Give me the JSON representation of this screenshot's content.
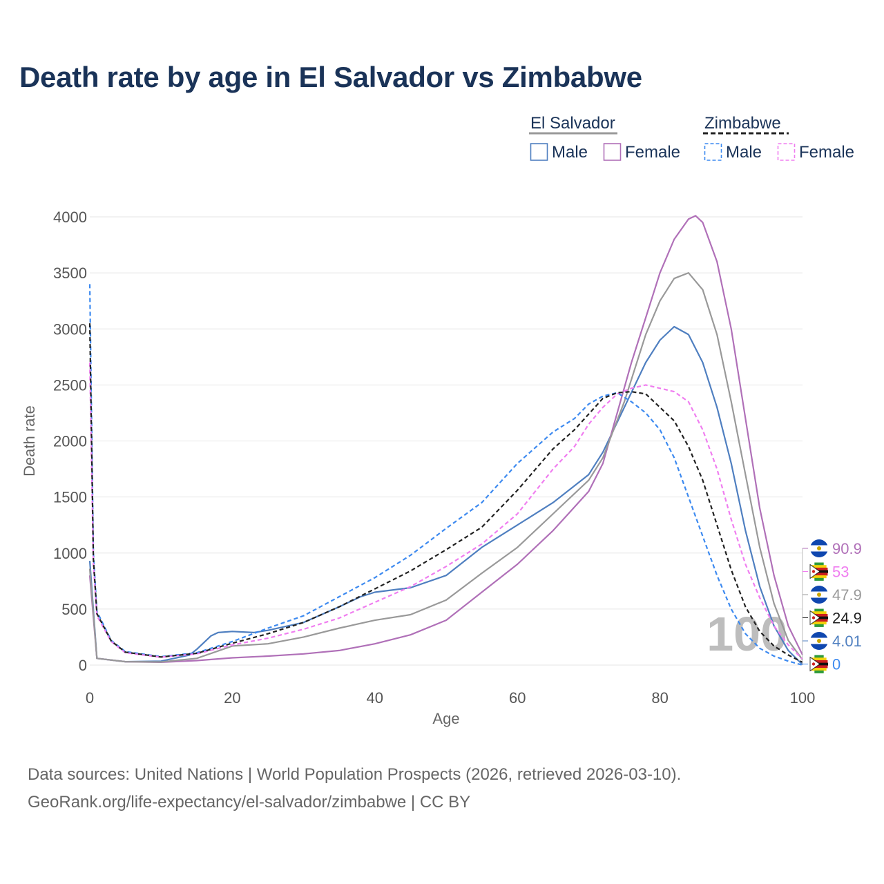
{
  "title": "Death rate by age in El Salvador vs Zimbabwe",
  "source_line_1": "Data sources: United Nations | World Population Prospects (2026, retrieved 2026-03-10).",
  "source_line_2": "GeoRank.org/life-expectancy/el-salvador/zimbabwe | CC BY",
  "watermark": "100",
  "legend": {
    "groups": [
      {
        "label": "El Salvador",
        "color": "#999999",
        "dash": "solid",
        "items": [
          {
            "label": "Male",
            "color": "#4f7fc0",
            "dash": "solid"
          },
          {
            "label": "Female",
            "color": "#b070b8",
            "dash": "solid"
          }
        ]
      },
      {
        "label": "Zimbabwe",
        "color": "#222222",
        "dash": "dashed",
        "items": [
          {
            "label": "Male",
            "color": "#3d8af0",
            "dash": "dashed"
          },
          {
            "label": "Female",
            "color": "#f07ef0",
            "dash": "dashed"
          }
        ]
      }
    ]
  },
  "end_labels": [
    {
      "value": "90.9",
      "color": "#b070b8",
      "flag": "el-salvador"
    },
    {
      "value": "53",
      "color": "#f07ef0",
      "flag": "zimbabwe"
    },
    {
      "value": "47.9",
      "color": "#999999",
      "flag": "el-salvador"
    },
    {
      "value": "24.9",
      "color": "#222222",
      "flag": "zimbabwe"
    },
    {
      "value": "4.01",
      "color": "#4f7fc0",
      "flag": "el-salvador"
    },
    {
      "value": "0",
      "color": "#3d8af0",
      "flag": "zimbabwe"
    }
  ],
  "chart_data": {
    "type": "line",
    "title": "Death rate by age in El Salvador vs Zimbabwe",
    "xlabel": "Age",
    "ylabel": "Death rate",
    "xlim": [
      0,
      100
    ],
    "ylim": [
      0,
      4000
    ],
    "xticks": [
      0,
      20,
      40,
      60,
      80,
      100
    ],
    "yticks": [
      0,
      500,
      1000,
      1500,
      2000,
      2500,
      3000,
      3500,
      4000
    ],
    "grid": true,
    "series": [
      {
        "name": "El Salvador Male",
        "color": "#4f7fc0",
        "dash": "solid",
        "points": [
          [
            0,
            930
          ],
          [
            1,
            60
          ],
          [
            5,
            30
          ],
          [
            10,
            35
          ],
          [
            14,
            90
          ],
          [
            15,
            140
          ],
          [
            17,
            260
          ],
          [
            18,
            290
          ],
          [
            20,
            300
          ],
          [
            23,
            290
          ],
          [
            25,
            310
          ],
          [
            30,
            380
          ],
          [
            35,
            520
          ],
          [
            38,
            610
          ],
          [
            40,
            650
          ],
          [
            45,
            690
          ],
          [
            50,
            800
          ],
          [
            55,
            1050
          ],
          [
            60,
            1250
          ],
          [
            65,
            1450
          ],
          [
            70,
            1700
          ],
          [
            72,
            1900
          ],
          [
            75,
            2300
          ],
          [
            78,
            2700
          ],
          [
            80,
            2900
          ],
          [
            82,
            3020
          ],
          [
            84,
            2950
          ],
          [
            86,
            2700
          ],
          [
            88,
            2300
          ],
          [
            90,
            1800
          ],
          [
            92,
            1200
          ],
          [
            94,
            700
          ],
          [
            96,
            350
          ],
          [
            98,
            130
          ],
          [
            100,
            4
          ]
        ]
      },
      {
        "name": "El Salvador Female",
        "color": "#b070b8",
        "dash": "solid",
        "points": [
          [
            0,
            800
          ],
          [
            1,
            60
          ],
          [
            5,
            30
          ],
          [
            10,
            25
          ],
          [
            15,
            40
          ],
          [
            20,
            65
          ],
          [
            25,
            80
          ],
          [
            30,
            100
          ],
          [
            35,
            130
          ],
          [
            40,
            190
          ],
          [
            45,
            270
          ],
          [
            50,
            400
          ],
          [
            55,
            650
          ],
          [
            60,
            900
          ],
          [
            65,
            1200
          ],
          [
            70,
            1550
          ],
          [
            72,
            1800
          ],
          [
            74,
            2250
          ],
          [
            76,
            2700
          ],
          [
            78,
            3100
          ],
          [
            80,
            3500
          ],
          [
            82,
            3800
          ],
          [
            84,
            3980
          ],
          [
            85,
            4010
          ],
          [
            86,
            3950
          ],
          [
            88,
            3600
          ],
          [
            90,
            3000
          ],
          [
            92,
            2200
          ],
          [
            94,
            1400
          ],
          [
            96,
            800
          ],
          [
            98,
            350
          ],
          [
            100,
            91
          ]
        ]
      },
      {
        "name": "El Salvador Total",
        "color": "#999999",
        "dash": "solid",
        "points": [
          [
            0,
            860
          ],
          [
            1,
            60
          ],
          [
            5,
            30
          ],
          [
            10,
            28
          ],
          [
            15,
            60
          ],
          [
            20,
            170
          ],
          [
            25,
            190
          ],
          [
            30,
            250
          ],
          [
            35,
            330
          ],
          [
            40,
            400
          ],
          [
            45,
            450
          ],
          [
            50,
            580
          ],
          [
            55,
            820
          ],
          [
            60,
            1050
          ],
          [
            65,
            1350
          ],
          [
            70,
            1650
          ],
          [
            72,
            1850
          ],
          [
            75,
            2350
          ],
          [
            78,
            2950
          ],
          [
            80,
            3250
          ],
          [
            82,
            3450
          ],
          [
            84,
            3500
          ],
          [
            86,
            3350
          ],
          [
            88,
            2950
          ],
          [
            90,
            2350
          ],
          [
            92,
            1700
          ],
          [
            94,
            1050
          ],
          [
            96,
            550
          ],
          [
            98,
            220
          ],
          [
            100,
            48
          ]
        ]
      },
      {
        "name": "Zimbabwe Male",
        "color": "#3d8af0",
        "dash": "dashed",
        "points": [
          [
            0,
            3400
          ],
          [
            0.5,
            1000
          ],
          [
            1,
            480
          ],
          [
            3,
            220
          ],
          [
            5,
            120
          ],
          [
            10,
            75
          ],
          [
            15,
            110
          ],
          [
            20,
            210
          ],
          [
            25,
            330
          ],
          [
            30,
            440
          ],
          [
            35,
            610
          ],
          [
            40,
            780
          ],
          [
            45,
            980
          ],
          [
            50,
            1220
          ],
          [
            55,
            1450
          ],
          [
            60,
            1800
          ],
          [
            65,
            2080
          ],
          [
            68,
            2200
          ],
          [
            70,
            2330
          ],
          [
            72,
            2400
          ],
          [
            74,
            2430
          ],
          [
            76,
            2350
          ],
          [
            78,
            2250
          ],
          [
            80,
            2100
          ],
          [
            82,
            1850
          ],
          [
            84,
            1500
          ],
          [
            86,
            1150
          ],
          [
            88,
            800
          ],
          [
            90,
            500
          ],
          [
            92,
            280
          ],
          [
            94,
            150
          ],
          [
            96,
            80
          ],
          [
            98,
            35
          ],
          [
            100,
            0
          ]
        ]
      },
      {
        "name": "Zimbabwe Female",
        "color": "#f07ef0",
        "dash": "dashed",
        "points": [
          [
            0,
            2700
          ],
          [
            0.5,
            900
          ],
          [
            1,
            440
          ],
          [
            3,
            210
          ],
          [
            5,
            110
          ],
          [
            10,
            70
          ],
          [
            15,
            100
          ],
          [
            20,
            180
          ],
          [
            25,
            240
          ],
          [
            30,
            320
          ],
          [
            35,
            420
          ],
          [
            40,
            560
          ],
          [
            45,
            700
          ],
          [
            50,
            880
          ],
          [
            55,
            1080
          ],
          [
            60,
            1350
          ],
          [
            65,
            1750
          ],
          [
            68,
            1950
          ],
          [
            70,
            2150
          ],
          [
            72,
            2300
          ],
          [
            74,
            2420
          ],
          [
            76,
            2470
          ],
          [
            78,
            2500
          ],
          [
            80,
            2470
          ],
          [
            82,
            2440
          ],
          [
            84,
            2350
          ],
          [
            86,
            2100
          ],
          [
            88,
            1750
          ],
          [
            90,
            1300
          ],
          [
            92,
            900
          ],
          [
            94,
            600
          ],
          [
            96,
            350
          ],
          [
            98,
            180
          ],
          [
            100,
            53
          ]
        ]
      },
      {
        "name": "Zimbabwe Total",
        "color": "#222222",
        "dash": "dashed",
        "points": [
          [
            0,
            3050
          ],
          [
            0.5,
            950
          ],
          [
            1,
            460
          ],
          [
            3,
            215
          ],
          [
            5,
            115
          ],
          [
            10,
            72
          ],
          [
            15,
            105
          ],
          [
            20,
            195
          ],
          [
            25,
            280
          ],
          [
            30,
            380
          ],
          [
            35,
            520
          ],
          [
            40,
            680
          ],
          [
            45,
            840
          ],
          [
            50,
            1030
          ],
          [
            55,
            1230
          ],
          [
            60,
            1560
          ],
          [
            65,
            1930
          ],
          [
            68,
            2100
          ],
          [
            70,
            2240
          ],
          [
            72,
            2380
          ],
          [
            74,
            2430
          ],
          [
            76,
            2440
          ],
          [
            78,
            2420
          ],
          [
            80,
            2300
          ],
          [
            82,
            2180
          ],
          [
            84,
            1950
          ],
          [
            86,
            1650
          ],
          [
            88,
            1250
          ],
          [
            90,
            850
          ],
          [
            92,
            520
          ],
          [
            94,
            300
          ],
          [
            96,
            170
          ],
          [
            98,
            90
          ],
          [
            100,
            25
          ]
        ]
      }
    ]
  }
}
